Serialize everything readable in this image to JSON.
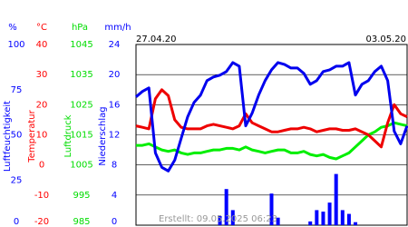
{
  "chart_data": {
    "type": "line",
    "start_label": "27.04.20",
    "end_label": "03.05.20",
    "footer": "Erstellt: 09.05.2025 06:23",
    "axes": [
      {
        "unit": "%",
        "label": "Luftfeuchtigkeit",
        "color": "#0000ff",
        "lim": [
          0,
          100
        ],
        "ticks": [
          0,
          25,
          50,
          75,
          100
        ]
      },
      {
        "unit": "°C",
        "label": "Temperatur",
        "color": "#ff0000",
        "lim": [
          -20,
          40
        ],
        "ticks": [
          -20,
          -10,
          0,
          10,
          20,
          30,
          40
        ]
      },
      {
        "unit": "hPa",
        "label": "Luftdruck",
        "color": "#00dd00",
        "lim": [
          985,
          1045
        ],
        "ticks": [
          985,
          995,
          1005,
          1015,
          1025,
          1035,
          1045
        ]
      },
      {
        "unit": "mm/h",
        "label": "Niederschlag",
        "color": "#0000ff",
        "lim": [
          0,
          24
        ],
        "ticks": [
          0,
          4,
          8,
          12,
          16,
          20,
          24
        ]
      }
    ],
    "grid": true,
    "series": [
      {
        "kind": "bar",
        "axis": 3,
        "color": "#0000ff",
        "values": [
          0,
          0,
          0,
          0,
          0,
          0,
          0,
          0,
          0,
          0,
          0,
          0,
          0,
          1.2,
          4.8,
          2,
          0,
          0,
          0,
          0,
          0,
          4.2,
          1,
          0,
          0,
          0,
          0,
          0.5,
          2,
          1.8,
          3,
          6.8,
          2,
          1.5,
          0.4,
          0,
          0,
          0,
          0,
          0,
          0,
          0,
          0
        ]
      },
      {
        "kind": "line",
        "axis": 2,
        "color": "#00ee00",
        "values": [
          1011.5,
          1011.5,
          1012,
          1011,
          1010,
          1009.5,
          1010,
          1009,
          1008.5,
          1009,
          1009,
          1009.5,
          1010,
          1010,
          1010.5,
          1010.5,
          1010,
          1011,
          1010,
          1009.5,
          1009,
          1009.5,
          1010,
          1010,
          1009,
          1009,
          1009.5,
          1008.5,
          1008,
          1008.5,
          1007.5,
          1007,
          1008,
          1009,
          1011,
          1013,
          1015,
          1016,
          1017.5,
          1018,
          1019,
          1018.5,
          1018
        ]
      },
      {
        "kind": "line",
        "axis": 1,
        "color": "#ee0000",
        "values": [
          13,
          12.5,
          12,
          22,
          25,
          23,
          15,
          12.5,
          12,
          12,
          12,
          13,
          13.5,
          13,
          12.5,
          12,
          13,
          17,
          14,
          13,
          12,
          11,
          11,
          11.5,
          12,
          12,
          12.5,
          12,
          11,
          11.5,
          12,
          12,
          11.5,
          11.5,
          12,
          11,
          10,
          8,
          6,
          14,
          20,
          17,
          16
        ]
      },
      {
        "kind": "line",
        "axis": 0,
        "color": "#0000ee",
        "values": [
          71,
          74,
          76,
          40,
          32,
          30,
          36,
          48,
          60,
          68,
          72,
          80,
          82,
          83,
          85,
          90,
          88,
          55,
          62,
          72,
          80,
          86,
          90,
          89,
          87,
          87,
          84,
          78,
          80,
          85,
          86,
          88,
          88,
          90,
          72,
          78,
          80,
          85,
          88,
          80,
          52,
          45,
          55
        ]
      }
    ]
  }
}
